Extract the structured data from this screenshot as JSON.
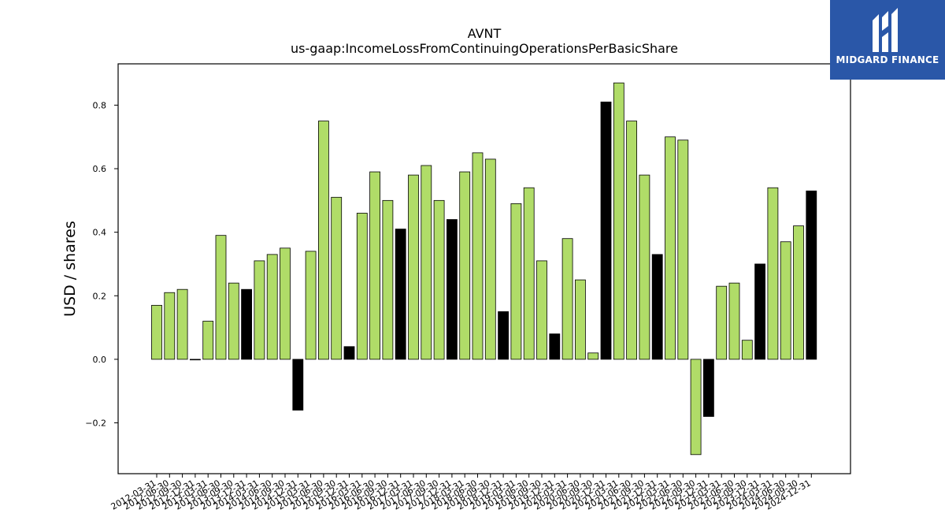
{
  "chart_data": {
    "type": "bar",
    "title": "AVNT",
    "subtitle": "us-gaap:IncomeLossFromContinuingOperationsPerBasicShare",
    "xlabel": "",
    "ylabel": "USD / shares",
    "ylim": [
      -0.36,
      0.93
    ],
    "yticks": [
      -0.2,
      0.0,
      0.2,
      0.4,
      0.6,
      0.8
    ],
    "grid": false,
    "colors": {
      "quarterly": "#b0dc68",
      "annual": "#000000"
    },
    "categories": [
      "2012-03-31",
      "2012-06-30",
      "2012-09-30",
      "2012-12-31",
      "2013-03-31",
      "2013-06-30",
      "2013-09-30",
      "2013-12-31",
      "2014-03-31",
      "2014-06-30",
      "2014-09-30",
      "2014-12-31",
      "2015-03-31",
      "2015-06-30",
      "2015-09-30",
      "2015-12-31",
      "2016-03-31",
      "2016-06-30",
      "2016-09-30",
      "2016-12-31",
      "2017-03-31",
      "2017-06-30",
      "2017-09-30",
      "2017-12-31",
      "2018-03-31",
      "2018-06-30",
      "2018-09-30",
      "2018-12-31",
      "2019-03-31",
      "2019-06-30",
      "2019-09-30",
      "2019-12-31",
      "2020-03-31",
      "2020-06-30",
      "2020-09-30",
      "2020-12-31",
      "2021-03-31",
      "2021-06-30",
      "2021-09-30",
      "2021-12-31",
      "2022-03-31",
      "2022-06-30",
      "2022-09-30",
      "2022-12-31",
      "2023-03-31",
      "2023-06-30",
      "2023-09-30",
      "2023-12-31",
      "2024-03-31",
      "2024-06-30",
      "2024-09-30",
      "2024-12-31"
    ],
    "values": [
      0.17,
      0.21,
      0.22,
      0.0,
      0.12,
      0.39,
      0.24,
      0.22,
      0.31,
      0.33,
      0.35,
      -0.16,
      0.34,
      0.75,
      0.51,
      0.04,
      0.46,
      0.59,
      0.5,
      0.41,
      0.58,
      0.61,
      0.5,
      0.44,
      0.59,
      0.65,
      0.63,
      0.15,
      0.49,
      0.54,
      0.31,
      0.08,
      0.38,
      0.25,
      0.02,
      0.81,
      0.87,
      0.75,
      0.58,
      0.33,
      0.7,
      0.69,
      -0.3,
      -0.18,
      0.23,
      0.24,
      0.06,
      0.3,
      0.54,
      0.37,
      0.42,
      0.53
    ],
    "annual": [
      false,
      false,
      false,
      false,
      false,
      false,
      false,
      true,
      false,
      false,
      false,
      true,
      false,
      false,
      false,
      true,
      false,
      false,
      false,
      true,
      false,
      false,
      false,
      true,
      false,
      false,
      false,
      true,
      false,
      false,
      false,
      true,
      false,
      false,
      false,
      true,
      false,
      false,
      false,
      true,
      false,
      false,
      false,
      true,
      false,
      false,
      false,
      true,
      false,
      false,
      false,
      true
    ]
  },
  "logo": {
    "name": "MIDGARD FINANCE",
    "icon": "midgard-logo-icon"
  }
}
